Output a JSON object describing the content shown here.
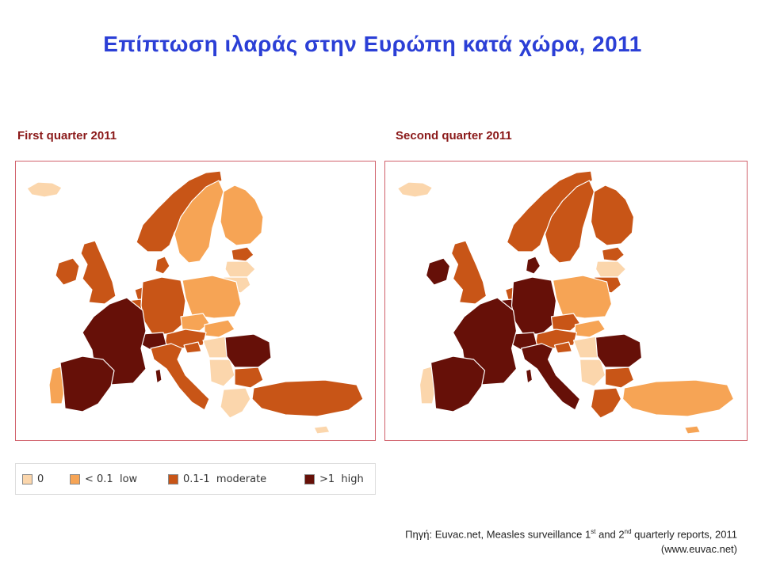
{
  "title": "Επίπτωση ιλαράς στην Ευρώπη κατά χώρα, 2011",
  "colors": {
    "c0": "#fbd6ac",
    "low": "#f6a455",
    "moderate": "#c85517",
    "high": "#661008",
    "frame": "#d0606a",
    "title": "#2b3fd6",
    "map_label": "#8b1a1a"
  },
  "maps": [
    {
      "label": "First quarter 2011",
      "regions": {
        "iceland": "c0",
        "norway": "moderate",
        "sweden": "low",
        "finland": "low",
        "estonia": "moderate",
        "latvia": "c0",
        "lithuania": "c0",
        "ireland": "moderate",
        "uk": "moderate",
        "netherlands": "moderate",
        "belgium": "moderate",
        "denmark": "moderate",
        "germany": "moderate",
        "poland": "low",
        "czechia": "low",
        "slovakia": "low",
        "austria": "moderate",
        "switzerland": "high",
        "france": "high",
        "portugal": "low",
        "spain": "high",
        "italy": "moderate",
        "hungary": "c0",
        "slovenia": "moderate",
        "romania": "high",
        "bulgaria": "moderate",
        "serbia": "c0",
        "greece": "c0",
        "turkey": "moderate",
        "corsica": "high",
        "cyprus": "c0"
      }
    },
    {
      "label": "Second quarter 2011",
      "regions": {
        "iceland": "c0",
        "norway": "moderate",
        "sweden": "moderate",
        "finland": "moderate",
        "estonia": "moderate",
        "latvia": "c0",
        "lithuania": "moderate",
        "ireland": "high",
        "uk": "moderate",
        "netherlands": "moderate",
        "belgium": "high",
        "denmark": "high",
        "germany": "high",
        "poland": "low",
        "czechia": "moderate",
        "slovakia": "low",
        "austria": "moderate",
        "switzerland": "high",
        "france": "high",
        "portugal": "c0",
        "spain": "high",
        "italy": "high",
        "hungary": "c0",
        "slovenia": "moderate",
        "romania": "high",
        "bulgaria": "moderate",
        "serbia": "c0",
        "greece": "moderate",
        "turkey": "low",
        "corsica": "high",
        "cyprus": "low"
      }
    }
  ],
  "legend": [
    {
      "key": "c0",
      "label": "0"
    },
    {
      "key": "low",
      "label": "< 0.1  low"
    },
    {
      "key": "moderate",
      "label": "0.1-1  moderate"
    },
    {
      "key": "high",
      "label": ">1  high"
    }
  ],
  "source": {
    "prefix": "Πηγή: Euvac.net, Measles surveillance 1",
    "sup1": "st",
    "mid": " and 2",
    "sup2": "nd",
    "suffix": " quarterly reports, 2011",
    "line2": "(www.euvac.net)"
  }
}
